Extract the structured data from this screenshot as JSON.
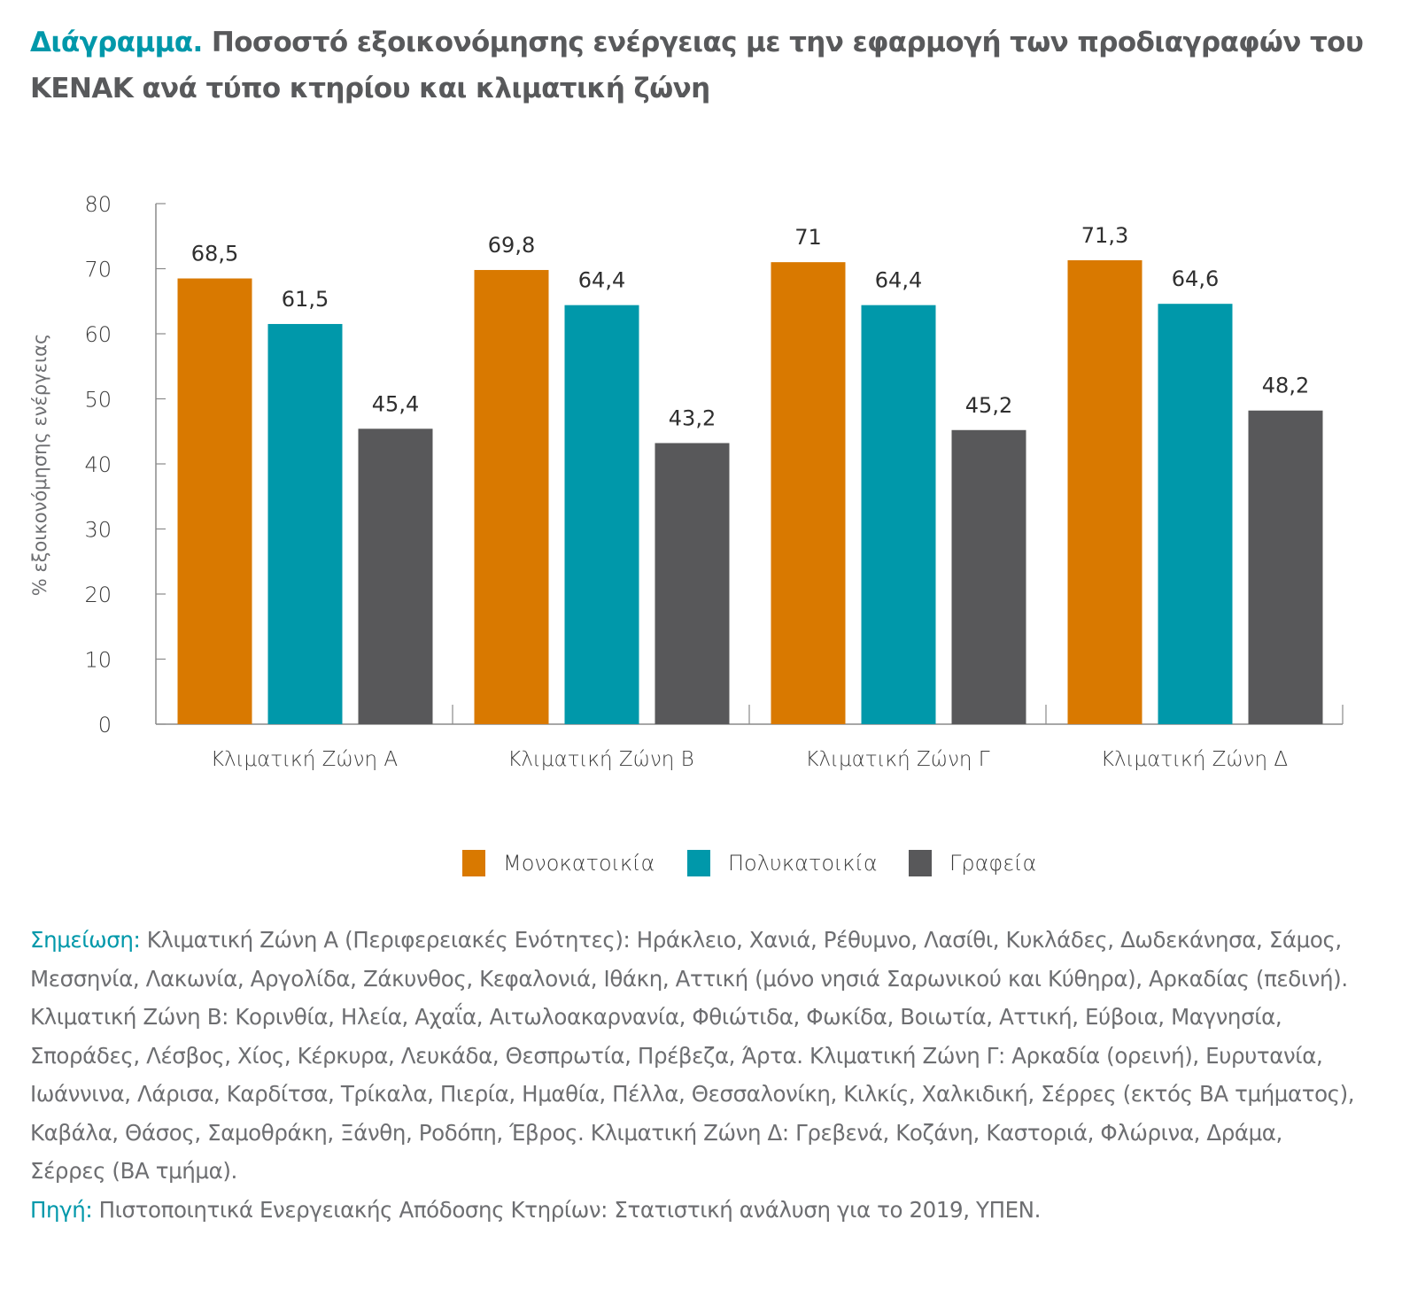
{
  "header": {
    "lead": "Διάγραμμα.",
    "title": "Ποσοστό εξοικονόμησης ενέργειας με την εφαρμογή των προδιαγραφών του ΚΕΝΑΚ ανά τύπο κτηρίου και κλιματική ζώνη"
  },
  "colors": {
    "accent": "#0098aa",
    "text": "#58595b",
    "series": [
      "#d97900",
      "#0098aa",
      "#58585a"
    ],
    "axis": "#8a8a8a"
  },
  "chart_data": {
    "type": "bar",
    "title": "Ποσοστό εξοικονόμησης ενέργειας με την εφαρμογή των προδιαγραφών του ΚΕΝΑΚ ανά τύπο κτηρίου και κλιματική ζώνη",
    "xlabel": "",
    "ylabel": "% εξοικονόμησης ενέργειας",
    "ylim": [
      0,
      80
    ],
    "yticks": [
      0,
      10,
      20,
      30,
      40,
      50,
      60,
      70,
      80
    ],
    "grid": false,
    "legend_position": "bottom-center",
    "categories": [
      "Κλιματική Ζώνη Α",
      "Κλιματική Ζώνη Β",
      "Κλιματική Ζώνη Γ",
      "Κλιματική Ζώνη Δ"
    ],
    "series": [
      {
        "name": "Μονοκατοικία",
        "values": [
          68.5,
          69.8,
          71,
          71.3
        ],
        "labels": [
          "68,5",
          "69,8",
          "71",
          "71,3"
        ]
      },
      {
        "name": "Πολυκατοικία",
        "values": [
          61.5,
          64.4,
          64.4,
          64.6
        ],
        "labels": [
          "61,5",
          "64,4",
          "64,4",
          "64,6"
        ]
      },
      {
        "name": "Γραφεία",
        "values": [
          45.4,
          43.2,
          45.2,
          48.2
        ],
        "labels": [
          "45,4",
          "43,2",
          "45,2",
          "48,2"
        ]
      }
    ]
  },
  "legend": {
    "items": [
      "Μονοκατοικία",
      "Πολυκατοικία",
      "Γραφεία"
    ]
  },
  "notes": {
    "note_label": "Σημείωση:",
    "note_text": " Κλιματική Ζώνη Α (Περιφερειακές Ενότητες): Ηράκλειο, Χανιά, Ρέθυμνο, Λασίθι, Κυκλάδες, Δωδεκάνησα, Σάμος, Μεσσηνία, Λακωνία, Αργολίδα, Ζάκυνθος, Κεφαλονιά, Ιθάκη, Αττική (μόνο νησιά Σαρωνικού και Κύθηρα), Αρκαδίας (πεδινή). Κλιματική Ζώνη Β: Κορινθία, Ηλεία, Αχαΐα, Αιτωλοακαρνανία, Φθιώτιδα, Φωκίδα, Βοιωτία, Αττική, Εύβοια, Μαγνησία, Σποράδες, Λέσβος, Χίος, Κέρκυρα, Λευκάδα, Θεσπρωτία, Πρέβεζα, Άρτα. Κλιματική Ζώνη Γ: Αρκαδία (ορεινή), Ευρυτανία, Ιωάννινα, Λάρισα, Καρδίτσα, Τρίκαλα, Πιερία, Ημαθία, Πέλλα, Θεσσαλονίκη, Κιλκίς, Χαλκιδική, Σέρρες (εκτός ΒΑ τμήματος), Καβάλα, Θάσος, Σαμοθράκη, Ξάνθη, Ροδόπη, Έβρος. Κλιματική Ζώνη Δ: Γρεβενά, Κοζάνη, Καστοριά, Φλώρινα, Δράμα, Σέρρες (ΒΑ τμήμα).",
    "source_label": "Πηγή:",
    "source_text": " Πιστοποιητικά Ενεργειακής Απόδοσης Κτηρίων: Στατιστική ανάλυση για το 2019, ΥΠΕΝ."
  }
}
